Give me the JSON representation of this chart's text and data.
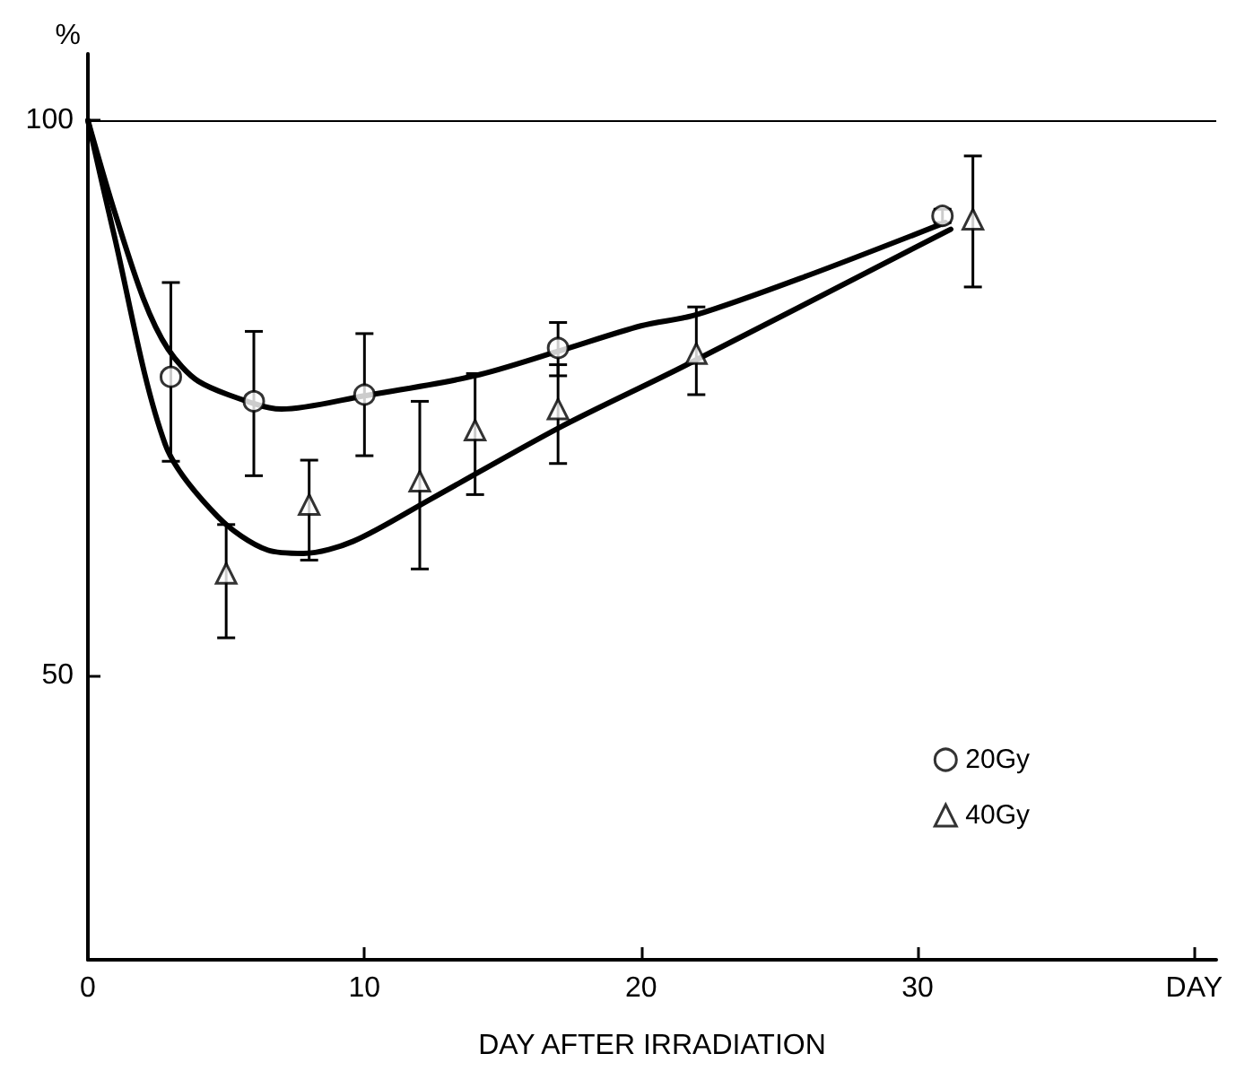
{
  "chart_data": {
    "type": "scatter",
    "xlabel": "DAY AFTER IRRADIATION",
    "ylabel": "%",
    "xlim": [
      0,
      40.8
    ],
    "xticks": [
      0,
      10,
      20,
      30,
      {
        "value": 40,
        "label": "DAY"
      }
    ],
    "ylim": [
      24.4,
      106
    ],
    "yticks": [
      50,
      100
    ],
    "grid": false,
    "legend": "bottom right",
    "ref_lines": [
      {
        "axis": "y",
        "value": 100,
        "color": "#000000"
      }
    ],
    "series": [
      {
        "name": "20Gy",
        "marker": "circle",
        "color": "#000000",
        "x": [
          3,
          6,
          10,
          17,
          30.9
        ],
        "values": [
          76.9,
          74.7,
          75.3,
          79.5,
          91.4
        ],
        "errors": [
          [
            69.3,
            85.4
          ],
          [
            68.0,
            81.0
          ],
          [
            69.8,
            80.8
          ],
          [
            77.0,
            81.8
          ],
          [
            90.8,
            92.0
          ]
        ]
      },
      {
        "name": "40Gy",
        "marker": "triangle",
        "color": "#000000",
        "x": [
          5,
          8,
          12,
          14,
          17,
          22,
          32
        ],
        "values": [
          59.2,
          65.4,
          67.5,
          72.1,
          74.0,
          79.0,
          91.1
        ],
        "errors": [
          [
            53.4,
            63.6
          ],
          [
            60.4,
            69.4
          ],
          [
            59.6,
            74.7
          ],
          [
            66.3,
            77.2
          ],
          [
            69.1,
            78.0
          ],
          [
            75.3,
            83.2
          ],
          [
            85.0,
            96.8
          ]
        ]
      },
      {
        "type": "line",
        "marker": "none",
        "line_style": "solid",
        "color": "#000000",
        "x": [
          0,
          0.9,
          2,
          2.9,
          4,
          6,
          7,
          10,
          14,
          17,
          20,
          22,
          26,
          31
        ],
        "values": [
          100,
          92.3,
          84,
          79.4,
          76.5,
          74.5,
          74,
          75.2,
          77,
          79.2,
          81.5,
          82.5,
          86,
          90.8
        ]
      },
      {
        "type": "line",
        "marker": "none",
        "line_style": "solid",
        "color": "#000000",
        "x": [
          0,
          0.9,
          2.8,
          4.7,
          6.5,
          7.8,
          9.6,
          12.4,
          17.1,
          21.5,
          31.2
        ],
        "values": [
          100,
          90.2,
          70.8,
          64.3,
          61.3,
          61.0,
          62.1,
          65.9,
          72.4,
          77.8,
          90.2
        ]
      }
    ]
  }
}
